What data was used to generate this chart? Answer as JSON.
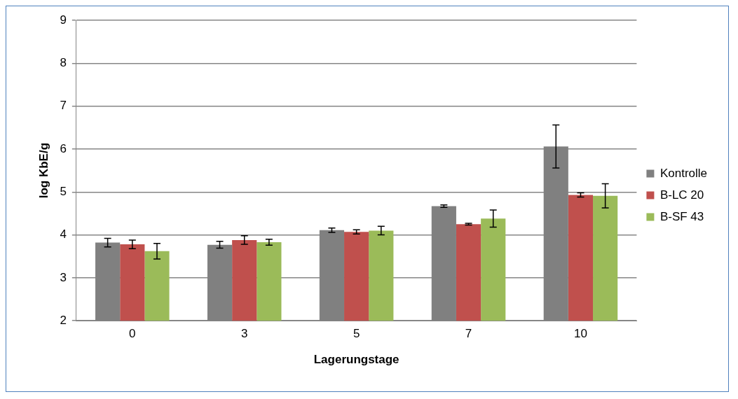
{
  "chart_data": {
    "type": "bar",
    "xlabel": "Lagerungstage",
    "ylabel": "log KbE/g",
    "categories": [
      "0",
      "3",
      "5",
      "7",
      "10"
    ],
    "series": [
      {
        "name": "Kontrolle",
        "color": "#808080",
        "values": [
          3.82,
          3.77,
          4.11,
          4.67,
          6.06
        ],
        "errors": [
          0.1,
          0.08,
          0.05,
          0.03,
          0.5
        ]
      },
      {
        "name": "B-LC 20",
        "color": "#c0504d",
        "values": [
          3.78,
          3.88,
          4.07,
          4.25,
          4.93
        ],
        "errors": [
          0.1,
          0.1,
          0.05,
          0.02,
          0.05
        ]
      },
      {
        "name": "B-SF 43",
        "color": "#9bbb59",
        "values": [
          3.62,
          3.83,
          4.1,
          4.38,
          4.91
        ],
        "errors": [
          0.18,
          0.07,
          0.1,
          0.2,
          0.28
        ]
      }
    ],
    "ylim": [
      2,
      9
    ],
    "yticks": [
      2,
      3,
      4,
      5,
      6,
      7,
      8,
      9
    ],
    "grid": "y",
    "legend": "right"
  }
}
